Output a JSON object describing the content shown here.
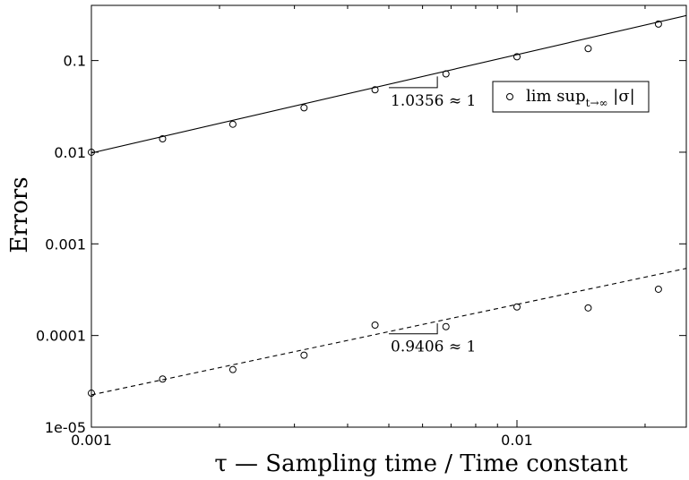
{
  "chart_data": {
    "type": "scatter",
    "title": "",
    "xlabel": "τ — Sampling time / Time constant",
    "ylabel": "Errors",
    "xscale": "log",
    "yscale": "log",
    "xlim": [
      0.001,
      0.025
    ],
    "ylim": [
      1e-05,
      0.4
    ],
    "grid": false,
    "legend_position": "top-right",
    "x_ticks": [
      {
        "value": 0.001,
        "label": "0.001"
      },
      {
        "value": 0.01,
        "label": "0.01"
      }
    ],
    "y_ticks": [
      {
        "value": 1e-05,
        "label": "1e-05"
      },
      {
        "value": 0.0001,
        "label": "0.0001"
      },
      {
        "value": 0.001,
        "label": "0.001"
      },
      {
        "value": 0.01,
        "label": "0.01"
      },
      {
        "value": 0.1,
        "label": "0.1"
      }
    ],
    "series": [
      {
        "name": "lim sup_{t→∞} |σ|",
        "marker": "circle",
        "x": [
          0.001,
          0.00147,
          0.00215,
          0.00316,
          0.00464,
          0.00681,
          0.01,
          0.0147,
          0.0215
        ],
        "y": [
          0.01,
          0.014,
          0.0202,
          0.0305,
          0.048,
          0.0715,
          0.11,
          0.135,
          0.25
        ]
      },
      {
        "name": "",
        "marker": "circle",
        "x": [
          0.001,
          0.00147,
          0.00215,
          0.00316,
          0.00464,
          0.00681,
          0.01,
          0.0147,
          0.0215
        ],
        "y": [
          2.35e-05,
          3.35e-05,
          4.25e-05,
          6.1e-05,
          0.00013,
          0.000125,
          0.000205,
          0.0002,
          0.00032
        ]
      }
    ],
    "fit_lines": [
      {
        "style": "solid",
        "x": [
          0.001,
          0.025
        ],
        "y": [
          0.0098,
          0.31
        ]
      },
      {
        "style": "dashed",
        "x": [
          0.001,
          0.025
        ],
        "y": [
          2.25e-05,
          0.00054
        ]
      }
    ],
    "annotations": [
      {
        "text": "1.0356 ≈ 1",
        "slope_x": [
          0.005,
          0.0065
        ],
        "slope_y": 0.0506
      },
      {
        "text": "0.9406 ≈ 1",
        "slope_x": [
          0.005,
          0.0065
        ],
        "slope_y": 0.0001045
      }
    ],
    "legend_label_parts": {
      "main": "lim sup",
      "sub": "t→∞",
      "tail": " |σ|"
    }
  }
}
